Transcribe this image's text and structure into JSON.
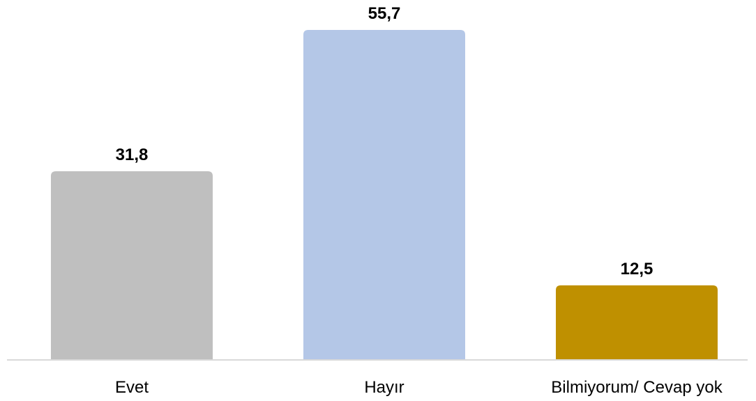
{
  "chart_data": {
    "type": "bar",
    "categories": [
      "Evet",
      "Hayır",
      "Bilmiyorum/ Cevap yok"
    ],
    "values": [
      31.8,
      55.7,
      12.5
    ],
    "value_labels": [
      "31,8",
      "55,7",
      "12,5"
    ],
    "colors": [
      "#bfbfbf",
      "#b4c7e7",
      "#bf9000"
    ],
    "axis_color": "#d9d9d9",
    "ylim": [
      0,
      60
    ],
    "grid": false,
    "legend": "none",
    "title": "",
    "xlabel": "",
    "ylabel": ""
  }
}
